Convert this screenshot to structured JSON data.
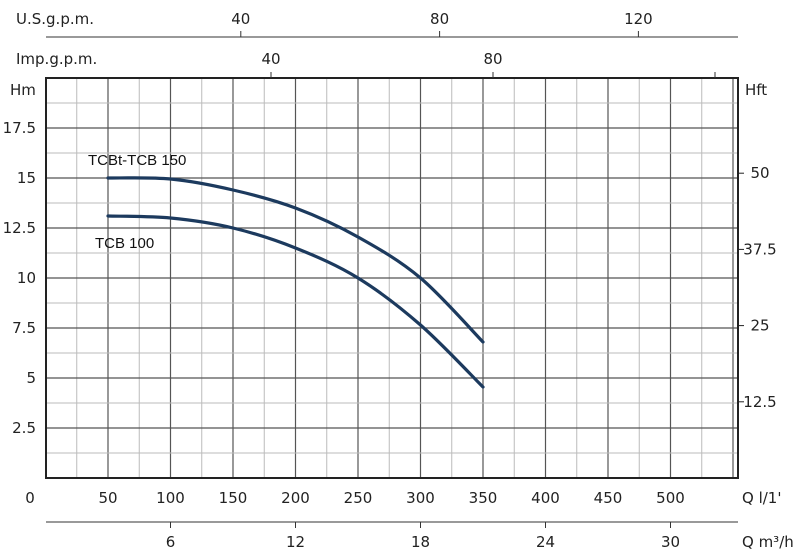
{
  "chart_data": {
    "type": "line",
    "x": {
      "label": "Q l/1'",
      "range": [
        0,
        554
      ],
      "ticks": [
        0,
        50,
        100,
        150,
        200,
        250,
        300,
        350,
        400,
        450,
        500
      ],
      "minor_step": 25
    },
    "x_secondary_bottom": {
      "label": "Q m³/h",
      "ticks": [
        6,
        12,
        18,
        24,
        30
      ]
    },
    "x_top_us": {
      "label": "U.S.g.p.m.",
      "ticks": [
        40,
        80,
        120
      ]
    },
    "x_top_imp": {
      "label": "Imp.g.p.m.",
      "ticks": [
        40,
        80
      ]
    },
    "y": {
      "label": "Hm",
      "range": [
        0,
        20
      ],
      "ticks": [
        2.5,
        5,
        7.5,
        10,
        12.5,
        15,
        17.5
      ],
      "minor_step": 1.25
    },
    "y_right": {
      "label": "Hft",
      "ticks": [
        12.5,
        25,
        37.5,
        50
      ]
    },
    "grid": true,
    "series": [
      {
        "name": "TCBt-TCB 150",
        "color": "#1c3a5e",
        "points": [
          [
            50,
            15.0
          ],
          [
            100,
            14.95
          ],
          [
            150,
            14.4
          ],
          [
            200,
            13.5
          ],
          [
            250,
            12.05
          ],
          [
            300,
            10.0
          ],
          [
            350,
            6.8
          ]
        ]
      },
      {
        "name": "TCB 100",
        "color": "#1c3a5e",
        "points": [
          [
            50,
            13.1
          ],
          [
            100,
            13.0
          ],
          [
            150,
            12.5
          ],
          [
            200,
            11.5
          ],
          [
            250,
            10.0
          ],
          [
            300,
            7.65
          ],
          [
            350,
            4.55
          ]
        ]
      }
    ]
  }
}
